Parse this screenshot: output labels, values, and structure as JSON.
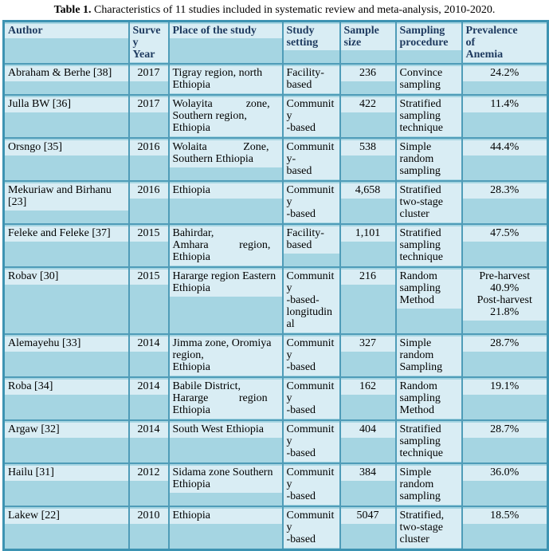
{
  "title": {
    "label": "Table 1.",
    "text": "Characteristics of 11 studies included in systematic review and meta-analysis, 2010-2020."
  },
  "colors": {
    "page-bg": "#ffffff",
    "cell-bg": "#a5d5e2",
    "para-bg": "#d9edf4",
    "border-color": "#4f9cb8",
    "outer-border": "#3d93b2",
    "header-text": "#1e3a5f",
    "body-text": "#000000"
  },
  "table": {
    "columns": [
      {
        "key": "author",
        "label": "Author",
        "align": "left"
      },
      {
        "key": "year",
        "label": "Survey\nYear",
        "align": "center"
      },
      {
        "key": "place",
        "label": "Place of the study",
        "align": "left"
      },
      {
        "key": "setting",
        "label": "Study\nsetting",
        "align": "left"
      },
      {
        "key": "sample",
        "label": "Sample size",
        "align": "center"
      },
      {
        "key": "procedure",
        "label": "Sampling\nprocedure",
        "align": "left"
      },
      {
        "key": "prevalence",
        "label": "Prevalence      of\nAnemia",
        "align": "center"
      }
    ],
    "rows": [
      {
        "author": "Abraham & Berhe [38]",
        "year": "2017",
        "place": "Tigray region, north\nEthiopia",
        "setting": "Facility-\nbased",
        "sample": "236",
        "procedure": "Convince\nsampling",
        "prevalence": "24.2%"
      },
      {
        "author": "Julla BW [36]",
        "year": "2017",
        "place": "Wolayita            zone,\nSouthern region,\nEthiopia",
        "setting": "Community\n-based",
        "sample": "422",
        "procedure": "Stratified\nsampling\ntechnique",
        "prevalence": "11.4%"
      },
      {
        "author": "Orsngo [35]",
        "year": "2016",
        "place": "Wolaita             Zone,\nSouthern Ethiopia",
        "setting": "Community-\nbased",
        "sample": "538",
        "procedure": "Simple\nrandom\nsampling",
        "prevalence": "44.4%"
      },
      {
        "author": "Mekuriaw and Birhanu [23]",
        "year": "2016",
        "place": "Ethiopia",
        "setting": "Community\n-based",
        "sample": "4,658",
        "procedure": "Stratified\ntwo-stage\ncluster",
        "prevalence": "28.3%"
      },
      {
        "author": "Feleke and Feleke [37]",
        "year": "2015",
        "place": "Bahirdar,\nAmhara           region,\nEthiopia",
        "setting": "Facility-\nbased",
        "sample": "1,101",
        "procedure": "Stratified\nsampling\ntechnique",
        "prevalence": "47.5%"
      },
      {
        "author": "Robav [30]",
        "year": "2015",
        "place": "Hararge region Eastern\nEthiopia",
        "setting": "Community\n-based-\nlongitudinal",
        "sample": "216",
        "procedure": "Random\nsampling\nMethod",
        "prevalence": "Pre-harvest\n40.9%\nPost-harvest\n21.8%"
      },
      {
        "author": "Alemayehu [33]",
        "year": "2014",
        "place": "Jimma zone, Oromiya\nregion,\nEthiopia",
        "setting": "Community\n-based",
        "sample": "327",
        "procedure": "Simple\nrandom\nSampling",
        "prevalence": "28.7%"
      },
      {
        "author": "Roba [34]",
        "year": "2014",
        "place": "Babile District,\nHararge           region\nEthiopia",
        "setting": "Community\n-based",
        "sample": "162",
        "procedure": "Random\nsampling\nMethod",
        "prevalence": "19.1%"
      },
      {
        "author": "Argaw [32]",
        "year": "2014",
        "place": "South West Ethiopia",
        "setting": "Community\n-based",
        "sample": "404",
        "procedure": "Stratified\nsampling\ntechnique",
        "prevalence": "28.7%"
      },
      {
        "author": "Hailu [31]",
        "year": "2012",
        "place": "Sidama zone Southern\nEthiopia",
        "setting": "Community\n-based",
        "sample": "384",
        "procedure": "Simple\nrandom\nsampling",
        "prevalence": "36.0%"
      },
      {
        "author": "Lakew [22]",
        "year": "2010",
        "place": "Ethiopia",
        "setting": "Community\n-based",
        "sample": "5047",
        "procedure": "Stratified,\ntwo-stage\ncluster",
        "prevalence": "18.5%"
      }
    ]
  }
}
